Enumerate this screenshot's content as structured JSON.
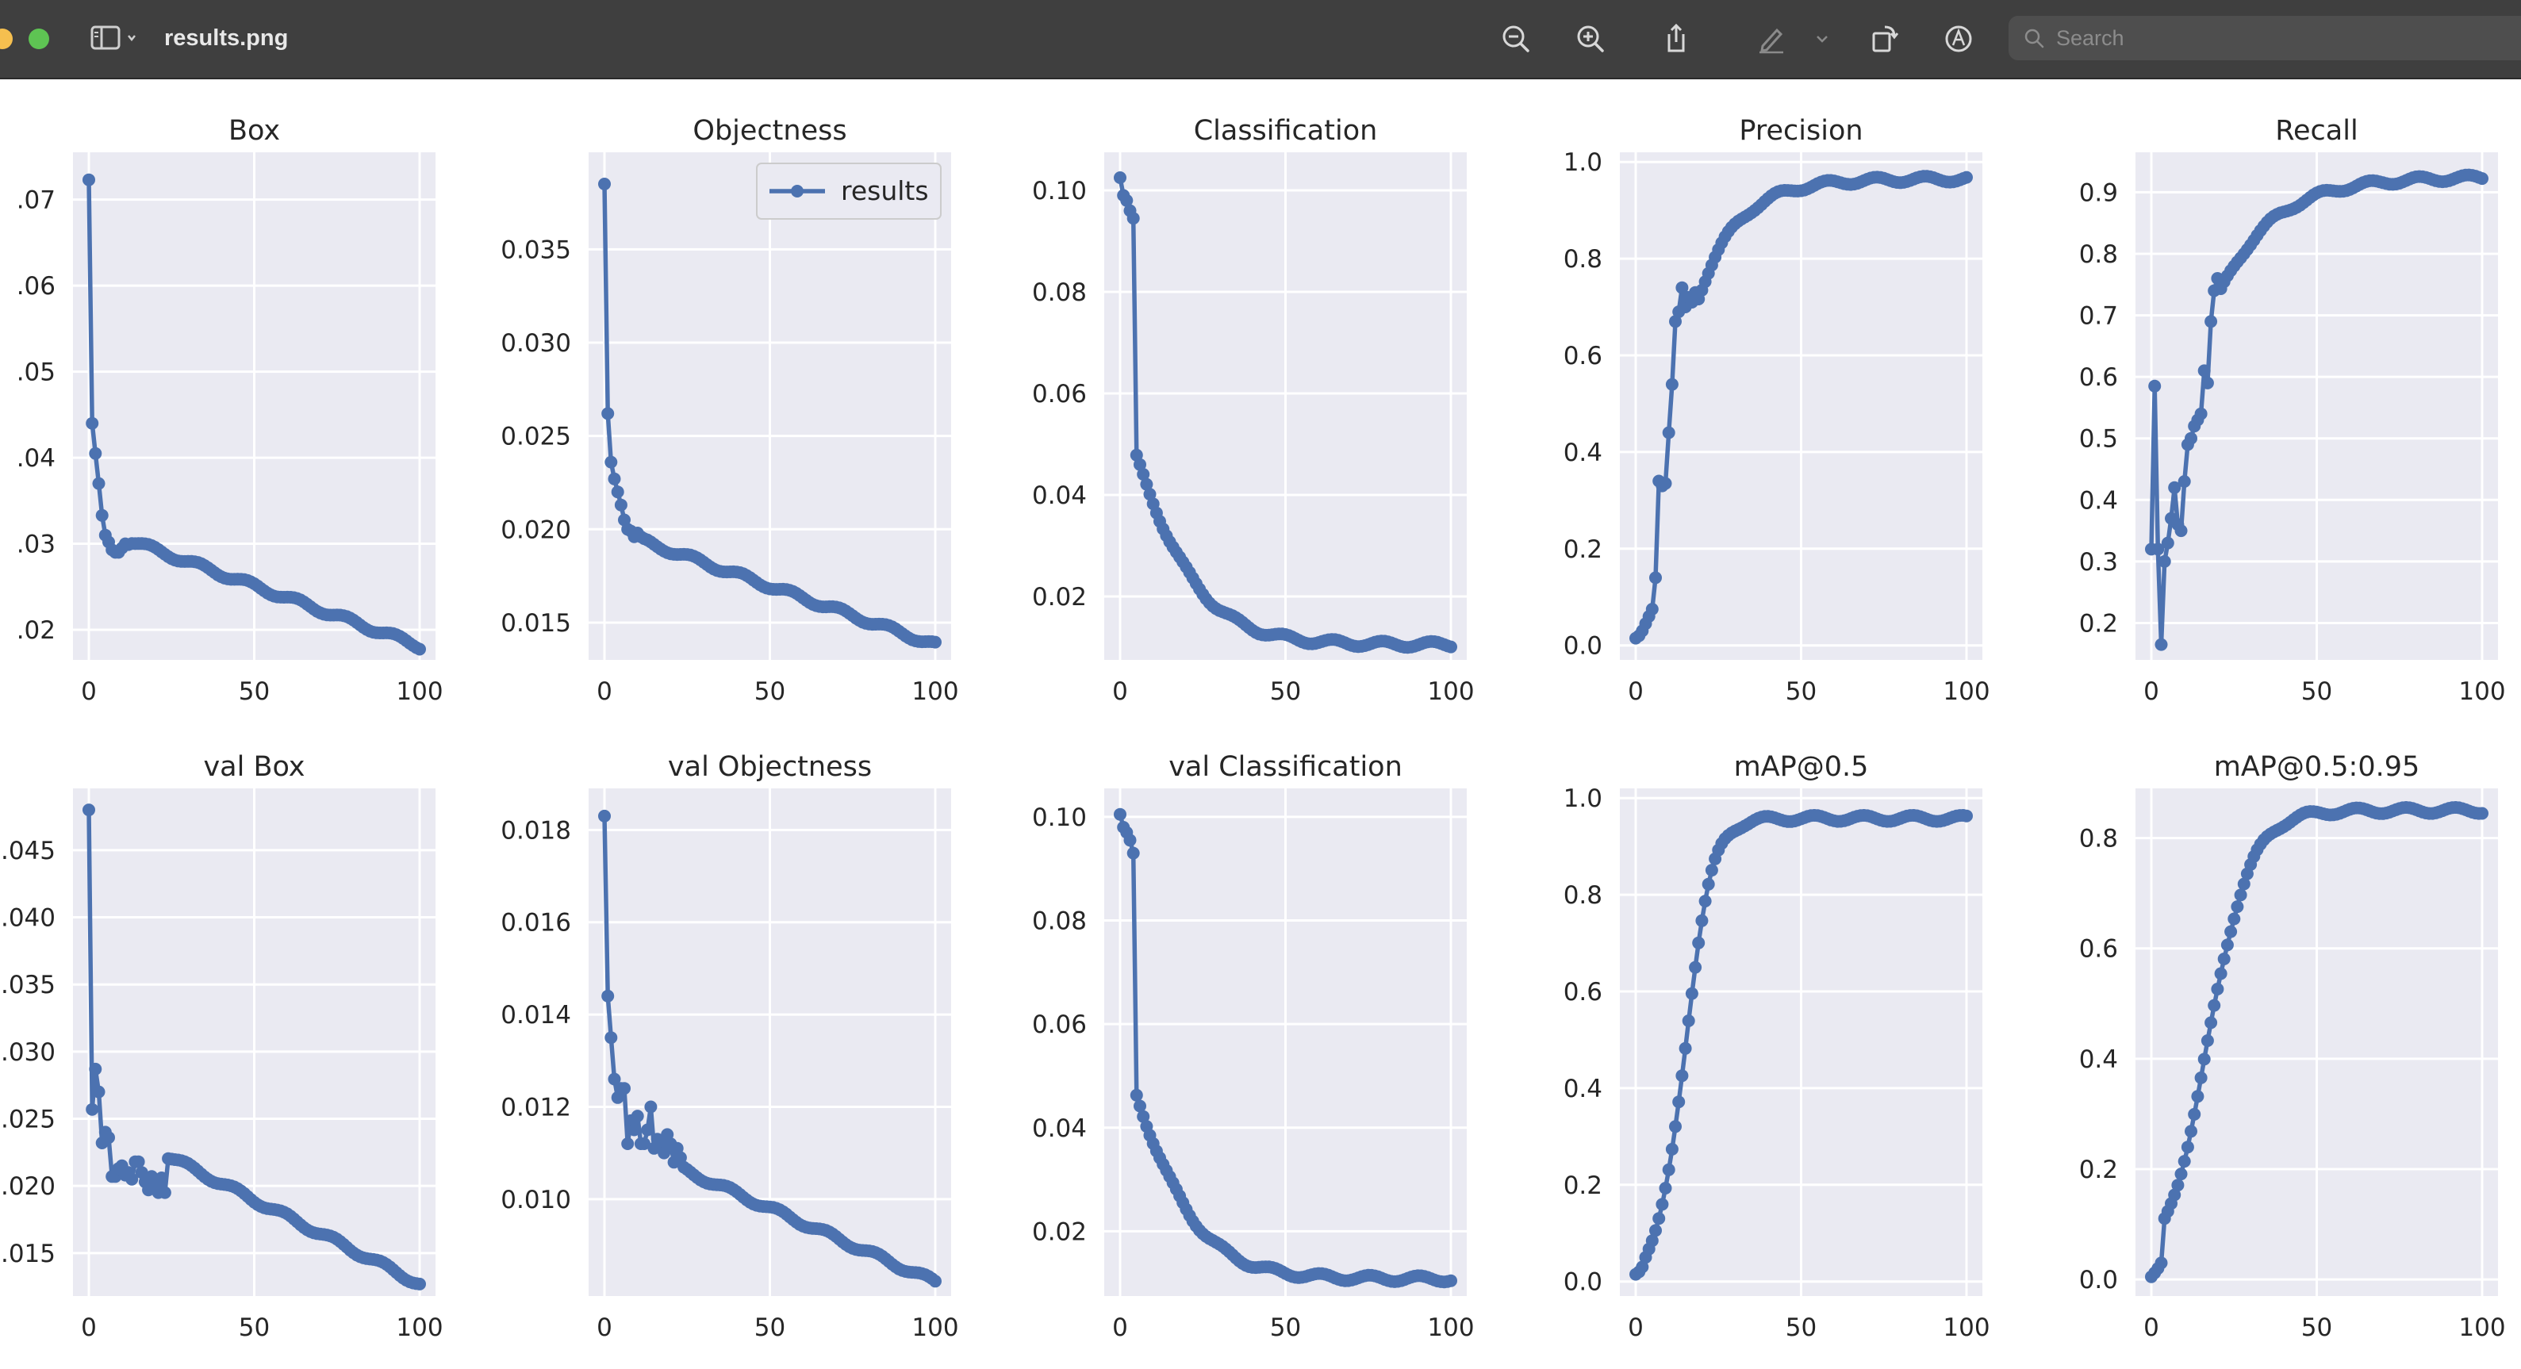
{
  "window": {
    "title": "results.png",
    "search_placeholder": "Search"
  },
  "toolbar": {
    "buttons": [
      "zoom-out-icon",
      "zoom-in-icon",
      "share-icon",
      "markup-pen-icon",
      "markup-dropdown-icon",
      "rotate-icon",
      "annotate-icon"
    ]
  },
  "colors": {
    "titlebar": "#3f3f3f",
    "plot_background": "#eaeaf2",
    "series": "#4c72b0",
    "grid": "#ffffff"
  },
  "chart_data": [
    {
      "title": "Box",
      "type": "line",
      "xlim": [
        0,
        100
      ],
      "xticks": [
        "0",
        "50",
        "100"
      ],
      "yticks": [
        {
          "v": 0.07,
          "l": ".07"
        },
        {
          "v": 0.06,
          "l": ".06"
        },
        {
          "v": 0.05,
          "l": ".05"
        },
        {
          "v": 0.04,
          "l": ".04"
        },
        {
          "v": 0.03,
          "l": ".03"
        },
        {
          "v": 0.02,
          "l": ".02"
        }
      ],
      "ylim": [
        0.0165,
        0.0755
      ],
      "decay": [
        0.0181,
        0.014,
        0.0113,
        0.06
      ],
      "head": [
        [
          0,
          0.0723
        ],
        [
          1,
          0.044
        ],
        [
          2,
          0.0405
        ],
        [
          3,
          0.037
        ],
        [
          4,
          0.0333
        ],
        [
          5,
          0.031
        ],
        [
          6,
          0.0302
        ],
        [
          7,
          0.0293
        ],
        [
          8,
          0.029
        ],
        [
          9,
          0.029
        ],
        [
          10,
          0.0295
        ],
        [
          11,
          0.03
        ],
        [
          12,
          0.0299
        ]
      ]
    },
    {
      "title": "Objectness",
      "type": "line",
      "xlim": [
        0,
        100
      ],
      "xticks": [
        "0",
        "50",
        "100"
      ],
      "yticks": [
        {
          "v": 0.035,
          "l": "0.035"
        },
        {
          "v": 0.03,
          "l": "0.030"
        },
        {
          "v": 0.025,
          "l": "0.025"
        },
        {
          "v": 0.02,
          "l": "0.020"
        },
        {
          "v": 0.015,
          "l": "0.015"
        }
      ],
      "ylim": [
        0.013,
        0.0402
      ],
      "decay": [
        0.0138,
        0.0063,
        0.0095,
        0.07
      ],
      "head": [
        [
          0,
          0.0385
        ],
        [
          1,
          0.0262
        ],
        [
          2,
          0.0236
        ],
        [
          3,
          0.0227
        ],
        [
          4,
          0.022
        ],
        [
          5,
          0.0213
        ],
        [
          6,
          0.0205
        ],
        [
          7,
          0.02
        ],
        [
          8,
          0.0199
        ],
        [
          9,
          0.0196
        ],
        [
          10,
          0.0198
        ],
        [
          11,
          0.0196
        ],
        [
          12,
          0.0195
        ]
      ],
      "legend": "results"
    },
    {
      "title": "Classification",
      "type": "line",
      "xlim": [
        0,
        100
      ],
      "xticks": [
        "0",
        "50",
        "100"
      ],
      "yticks": [
        {
          "v": 0.1,
          "l": "0.10"
        },
        {
          "v": 0.08,
          "l": "0.08"
        },
        {
          "v": 0.06,
          "l": "0.06"
        },
        {
          "v": 0.04,
          "l": "0.04"
        },
        {
          "v": 0.02,
          "l": "0.02"
        }
      ],
      "ylim": [
        0.0075,
        0.1075
      ],
      "sigmoid": [
        0.103,
        0.0105,
        0.0,
        12.0,
        0.0
      ],
      "head": [
        [
          0,
          0.1025
        ],
        [
          1,
          0.099
        ],
        [
          2,
          0.098
        ],
        [
          3,
          0.096
        ],
        [
          4,
          0.0945
        ]
      ]
    },
    {
      "title": "Precision",
      "type": "line",
      "xlim": [
        0,
        100
      ],
      "xticks": [
        "0",
        "50",
        "100"
      ],
      "yticks": [
        {
          "v": 1.0,
          "l": "1.0"
        },
        {
          "v": 0.8,
          "l": "0.8"
        },
        {
          "v": 0.6,
          "l": "0.6"
        },
        {
          "v": 0.4,
          "l": "0.4"
        },
        {
          "v": 0.2,
          "l": "0.2"
        },
        {
          "v": 0.0,
          "l": "0.0"
        }
      ],
      "ylim": [
        -0.03,
        1.02
      ],
      "sat": [
        0.965,
        0.0,
        12.0,
        0.018
      ],
      "head": [
        [
          0,
          0.015
        ],
        [
          1,
          0.02
        ],
        [
          2,
          0.03
        ],
        [
          3,
          0.045
        ],
        [
          4,
          0.06
        ],
        [
          5,
          0.075
        ],
        [
          6,
          0.14
        ],
        [
          7,
          0.34
        ],
        [
          8,
          0.33
        ],
        [
          9,
          0.335
        ],
        [
          10,
          0.44
        ],
        [
          11,
          0.54
        ],
        [
          12,
          0.67
        ],
        [
          13,
          0.69
        ],
        [
          14,
          0.74
        ],
        [
          15,
          0.7
        ],
        [
          16,
          0.72
        ],
        [
          17,
          0.71
        ],
        [
          18,
          0.73
        ]
      ]
    },
    {
      "title": "Recall",
      "type": "line",
      "xlim": [
        0,
        100
      ],
      "xticks": [
        "0",
        "50",
        "100"
      ],
      "yticks": [
        {
          "v": 0.9,
          "l": "0.9"
        },
        {
          "v": 0.8,
          "l": "0.8"
        },
        {
          "v": 0.7,
          "l": "0.7"
        },
        {
          "v": 0.6,
          "l": "0.6"
        },
        {
          "v": 0.5,
          "l": "0.5"
        },
        {
          "v": 0.4,
          "l": "0.4"
        },
        {
          "v": 0.3,
          "l": "0.3"
        },
        {
          "v": 0.2,
          "l": "0.2"
        }
      ],
      "ylim": [
        0.14,
        0.965
      ],
      "sat": [
        0.925,
        0.0,
        16.0,
        0.016
      ],
      "head": [
        [
          0,
          0.32
        ],
        [
          1,
          0.585
        ],
        [
          2,
          0.32
        ],
        [
          3,
          0.165
        ],
        [
          4,
          0.3
        ],
        [
          5,
          0.33
        ],
        [
          6,
          0.37
        ],
        [
          7,
          0.42
        ],
        [
          8,
          0.36
        ],
        [
          9,
          0.35
        ],
        [
          10,
          0.43
        ],
        [
          11,
          0.49
        ],
        [
          12,
          0.5
        ],
        [
          13,
          0.52
        ],
        [
          14,
          0.53
        ],
        [
          15,
          0.54
        ],
        [
          16,
          0.61
        ],
        [
          17,
          0.59
        ],
        [
          18,
          0.69
        ],
        [
          19,
          0.74
        ],
        [
          20,
          0.76
        ]
      ]
    },
    {
      "title": "val Box",
      "type": "line",
      "xlim": [
        0,
        100
      ],
      "xticks": [
        "0",
        "50",
        "100"
      ],
      "yticks": [
        {
          "v": 0.045,
          "l": ".045"
        },
        {
          "v": 0.04,
          "l": ".040"
        },
        {
          "v": 0.035,
          "l": ".035"
        },
        {
          "v": 0.03,
          "l": ".030"
        },
        {
          "v": 0.025,
          "l": ".025"
        },
        {
          "v": 0.02,
          "l": ".020"
        },
        {
          "v": 0.015,
          "l": ".015"
        }
      ],
      "ylim": [
        0.0118,
        0.0496
      ],
      "decay": [
        0.0127,
        0.0125,
        0.0345,
        0.05
      ],
      "head": [
        [
          0,
          0.048
        ],
        [
          1,
          0.0257
        ],
        [
          2,
          0.0287
        ],
        [
          3,
          0.027
        ],
        [
          4,
          0.0232
        ],
        [
          5,
          0.024
        ],
        [
          6,
          0.0236
        ],
        [
          7,
          0.0207
        ],
        [
          8,
          0.0207
        ],
        [
          9,
          0.0213
        ],
        [
          10,
          0.0215
        ],
        [
          11,
          0.0208
        ],
        [
          12,
          0.021
        ],
        [
          13,
          0.0205
        ],
        [
          14,
          0.0218
        ],
        [
          15,
          0.0218
        ],
        [
          16,
          0.021
        ],
        [
          17,
          0.0203
        ],
        [
          18,
          0.0197
        ],
        [
          19,
          0.0207
        ],
        [
          20,
          0.02
        ],
        [
          21,
          0.0195
        ],
        [
          22,
          0.0206
        ],
        [
          23,
          0.0195
        ]
      ]
    },
    {
      "title": "val Objectness",
      "type": "line",
      "xlim": [
        0,
        100
      ],
      "xticks": [
        "0",
        "50",
        "100"
      ],
      "yticks": [
        {
          "v": 0.018,
          "l": "0.018"
        },
        {
          "v": 0.016,
          "l": "0.016"
        },
        {
          "v": 0.014,
          "l": "0.014"
        },
        {
          "v": 0.012,
          "l": "0.012"
        },
        {
          "v": 0.01,
          "l": "0.010"
        }
      ],
      "ylim": [
        0.0079,
        0.0189
      ],
      "decay": [
        0.0082,
        0.0032,
        0.0125,
        0.02
      ],
      "head": [
        [
          0,
          0.0183
        ],
        [
          1,
          0.0144
        ],
        [
          2,
          0.0135
        ],
        [
          3,
          0.0126
        ],
        [
          4,
          0.0122
        ],
        [
          5,
          0.0124
        ],
        [
          6,
          0.0124
        ],
        [
          7,
          0.0112
        ],
        [
          8,
          0.0117
        ],
        [
          9,
          0.0115
        ],
        [
          10,
          0.0118
        ],
        [
          11,
          0.0112
        ],
        [
          12,
          0.0112
        ],
        [
          13,
          0.0115
        ],
        [
          14,
          0.012
        ],
        [
          15,
          0.0111
        ],
        [
          16,
          0.0113
        ],
        [
          17,
          0.0112
        ],
        [
          18,
          0.011
        ],
        [
          19,
          0.0114
        ],
        [
          20,
          0.0112
        ],
        [
          21,
          0.0108
        ],
        [
          22,
          0.0111
        ],
        [
          23,
          0.0109
        ]
      ]
    },
    {
      "title": "val Classification",
      "type": "line",
      "xlim": [
        0,
        100
      ],
      "xticks": [
        "0",
        "50",
        "100"
      ],
      "yticks": [
        {
          "v": 0.1,
          "l": "0.10"
        },
        {
          "v": 0.08,
          "l": "0.08"
        },
        {
          "v": 0.06,
          "l": "0.06"
        },
        {
          "v": 0.04,
          "l": "0.04"
        },
        {
          "v": 0.02,
          "l": "0.02"
        }
      ],
      "ylim": [
        0.0075,
        0.1055
      ],
      "sigmoid": [
        0.101,
        0.0108,
        0.0,
        11.5,
        0.0
      ],
      "head": [
        [
          0,
          0.1005
        ],
        [
          1,
          0.098
        ],
        [
          2,
          0.097
        ],
        [
          3,
          0.0955
        ],
        [
          4,
          0.093
        ]
      ]
    },
    {
      "title": "mAP@0.5",
      "type": "line",
      "xlim": [
        0,
        100
      ],
      "xticks": [
        "0",
        "50",
        "100"
      ],
      "yticks": [
        {
          "v": 1.0,
          "l": "1.0"
        },
        {
          "v": 0.8,
          "l": "0.8"
        },
        {
          "v": 0.6,
          "l": "0.6"
        },
        {
          "v": 0.4,
          "l": "0.4"
        },
        {
          "v": 0.2,
          "l": "0.2"
        },
        {
          "v": 0.0,
          "l": "0.0"
        }
      ],
      "ylim": [
        -0.03,
        1.02
      ],
      "sigmoid": [
        0.015,
        0.958,
        15.0,
        4.0,
        0.0
      ],
      "head": [
        [
          0,
          0.015
        ],
        [
          1,
          0.02
        ],
        [
          2,
          0.03
        ],
        [
          3,
          0.05
        ]
      ]
    },
    {
      "title": "mAP@0.5:0.95",
      "type": "line",
      "xlim": [
        0,
        100
      ],
      "xticks": [
        "0",
        "50",
        "100"
      ],
      "yticks": [
        {
          "v": 0.8,
          "l": "0.8"
        },
        {
          "v": 0.6,
          "l": "0.6"
        },
        {
          "v": 0.4,
          "l": "0.4"
        },
        {
          "v": 0.2,
          "l": "0.2"
        },
        {
          "v": 0.0,
          "l": "0.0"
        }
      ],
      "ylim": [
        -0.03,
        0.89
      ],
      "sigmoid": [
        0.005,
        0.85,
        17.0,
        6.5,
        0.0
      ],
      "head": [
        [
          0,
          0.005
        ],
        [
          1,
          0.012
        ],
        [
          2,
          0.02
        ],
        [
          3,
          0.03
        ]
      ]
    }
  ]
}
